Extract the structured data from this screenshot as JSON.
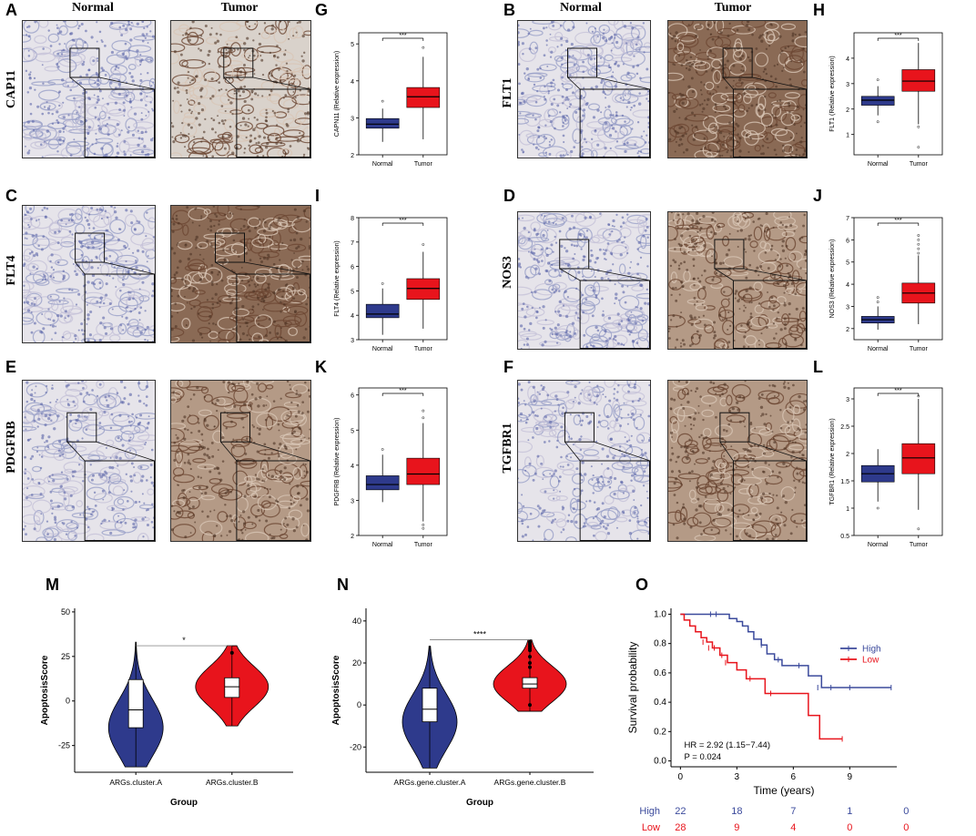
{
  "panel_letters": {
    "A": "A",
    "B": "B",
    "C": "C",
    "D": "D",
    "E": "E",
    "F": "F",
    "G": "G",
    "H": "H",
    "I": "I",
    "J": "J",
    "K": "K",
    "L": "L",
    "M": "M",
    "N": "N",
    "O": "O"
  },
  "ihc": {
    "col_normal": "Normal",
    "col_tumor": "Tumor",
    "genes": {
      "A": "CAP11",
      "B": "FLT1",
      "C": "FLT4",
      "D": "NOS3",
      "E": "PDGFRB",
      "F": "TGFBR1"
    }
  },
  "colors": {
    "normal_box": "#2e3a8c",
    "tumor_box": "#e8141c",
    "high": "#3b4a9c",
    "low": "#e8141c"
  },
  "chart_data": [
    {
      "panel": "G",
      "type": "box",
      "ylabel": "CAPN11 (Relative expression)",
      "categories": [
        "Normal",
        "Tumor"
      ],
      "significance": "***",
      "ylim": [
        2,
        5.3
      ],
      "yticks": [
        2,
        3,
        4,
        5
      ],
      "boxes": [
        {
          "q1": 2.72,
          "median": 2.83,
          "q3": 2.98,
          "whislo": 2.35,
          "whishi": 3.25,
          "outliers": [
            3.45
          ]
        },
        {
          "q1": 3.28,
          "median": 3.57,
          "q3": 3.82,
          "whislo": 2.42,
          "whishi": 4.65,
          "outliers": [
            4.9
          ]
        }
      ]
    },
    {
      "panel": "H",
      "type": "box",
      "ylabel": "FLT1 (Relative expression)",
      "categories": [
        "Normal",
        "Tumor"
      ],
      "significance": "***",
      "ylim": [
        0.2,
        5
      ],
      "yticks": [
        1,
        2,
        3,
        4
      ],
      "boxes": [
        {
          "q1": 2.15,
          "median": 2.35,
          "q3": 2.5,
          "whislo": 1.75,
          "whishi": 2.9,
          "outliers": [
            3.15,
            1.5
          ]
        },
        {
          "q1": 2.7,
          "median": 3.1,
          "q3": 3.55,
          "whislo": 1.4,
          "whishi": 4.6,
          "outliers": [
            1.3,
            0.5
          ]
        }
      ]
    },
    {
      "panel": "I",
      "type": "box",
      "ylabel": "FLT4 (Relative expression)",
      "categories": [
        "Normal",
        "Tumor"
      ],
      "significance": "***",
      "ylim": [
        3,
        8
      ],
      "yticks": [
        3,
        4,
        5,
        6,
        7,
        8
      ],
      "boxes": [
        {
          "q1": 3.9,
          "median": 4.05,
          "q3": 4.45,
          "whislo": 3.2,
          "whishi": 5.1,
          "outliers": [
            5.3
          ]
        },
        {
          "q1": 4.65,
          "median": 5.1,
          "q3": 5.5,
          "whislo": 3.45,
          "whishi": 6.6,
          "outliers": [
            6.9
          ]
        }
      ]
    },
    {
      "panel": "J",
      "type": "box",
      "ylabel": "NOS3 (Relative expression)",
      "categories": [
        "Normal",
        "Tumor"
      ],
      "significance": "***",
      "ylim": [
        1.5,
        7
      ],
      "yticks": [
        2,
        3,
        4,
        5,
        6,
        7
      ],
      "boxes": [
        {
          "q1": 2.25,
          "median": 2.4,
          "q3": 2.55,
          "whislo": 1.95,
          "whishi": 3.0,
          "outliers": [
            3.2,
            3.4
          ]
        },
        {
          "q1": 3.15,
          "median": 3.6,
          "q3": 4.05,
          "whislo": 2.2,
          "whishi": 5.3,
          "outliers": [
            5.4,
            5.6,
            5.8,
            6.0,
            6.2
          ]
        }
      ]
    },
    {
      "panel": "K",
      "type": "box",
      "ylabel": "PDGFRB (Relative expression)",
      "categories": [
        "Normal",
        "Tumor"
      ],
      "significance": "***",
      "ylim": [
        2,
        6.2
      ],
      "yticks": [
        2,
        3,
        4,
        5,
        6
      ],
      "boxes": [
        {
          "q1": 3.3,
          "median": 3.45,
          "q3": 3.7,
          "whislo": 2.95,
          "whishi": 4.3,
          "outliers": [
            4.45
          ]
        },
        {
          "q1": 3.45,
          "median": 3.75,
          "q3": 4.2,
          "whislo": 2.4,
          "whishi": 5.2,
          "outliers": [
            5.35,
            5.55,
            2.3,
            2.2
          ]
        }
      ]
    },
    {
      "panel": "L",
      "type": "box",
      "ylabel": "TGFBR1 (Relative expression)",
      "categories": [
        "Normal",
        "Tumor"
      ],
      "significance": "***",
      "ylim": [
        0.5,
        3.2
      ],
      "yticks": [
        0.5,
        1.0,
        1.5,
        2.0,
        2.5,
        3.0
      ],
      "boxes": [
        {
          "q1": 1.48,
          "median": 1.63,
          "q3": 1.78,
          "whislo": 1.12,
          "whishi": 2.08,
          "outliers": [
            1.0
          ]
        },
        {
          "q1": 1.63,
          "median": 1.92,
          "q3": 2.18,
          "whislo": 0.97,
          "whishi": 3.0,
          "outliers": [
            0.62,
            3.05
          ]
        }
      ]
    },
    {
      "panel": "M",
      "type": "violin",
      "ylabel": "ApoptosisScore",
      "xlabel": "Group",
      "categories": [
        "ARGs.cluster.A",
        "ARGs.cluster.B"
      ],
      "significance": "*",
      "ylim": [
        -40,
        52
      ],
      "yticks": [
        -25,
        0,
        25,
        50
      ],
      "groups": [
        {
          "q1": -15,
          "median": -5,
          "q3": 12,
          "whislo": -37,
          "whishi": 33,
          "outliers": []
        },
        {
          "q1": 2,
          "median": 8,
          "q3": 13,
          "whislo": -14,
          "whishi": 31,
          "outliers": [
            27
          ]
        }
      ]
    },
    {
      "panel": "N",
      "type": "violin",
      "ylabel": "ApoptosisScore",
      "xlabel": "Group",
      "categories": [
        "ARGs.gene.cluster.A",
        "ARGs.gene.cluster.B"
      ],
      "significance": "****",
      "ylim": [
        -32,
        46
      ],
      "yticks": [
        -20,
        0,
        20,
        40
      ],
      "groups": [
        {
          "q1": -8,
          "median": -2,
          "q3": 8,
          "whislo": -30,
          "whishi": 28,
          "outliers": []
        },
        {
          "q1": 8,
          "median": 10,
          "q3": 13,
          "whislo": -3,
          "whishi": 31,
          "outliers": [
            0,
            18,
            20,
            23,
            26,
            27,
            28,
            29,
            30
          ]
        }
      ]
    },
    {
      "panel": "O",
      "type": "line",
      "subtype": "kaplan-meier",
      "xlabel": "Time (years)",
      "ylabel": "Survival probability",
      "xlim": [
        -0.5,
        11.5
      ],
      "ylim": [
        -0.04,
        1.04
      ],
      "xticks": [
        0,
        3,
        6,
        9
      ],
      "yticks": [
        0.0,
        0.2,
        0.4,
        0.6,
        0.8,
        1.0
      ],
      "yticklabels": [
        "0.0",
        "0.2",
        "0.4",
        "0.6",
        "0.8",
        "1.0"
      ],
      "annotation_hr": "HR = 2.92 (1.15−7.44)",
      "annotation_p": "P = 0.024",
      "series": [
        {
          "name": "High",
          "color": "#3b4a9c",
          "x": [
            0,
            2.2,
            2.6,
            3.0,
            3.3,
            3.6,
            3.9,
            4.3,
            4.6,
            5.0,
            5.4,
            6.8,
            7.5,
            11.2
          ],
          "y": [
            1.0,
            1.0,
            0.97,
            0.95,
            0.92,
            0.88,
            0.83,
            0.79,
            0.73,
            0.69,
            0.65,
            0.58,
            0.5,
            0.5
          ],
          "censors": [
            [
              1.6,
              1.0
            ],
            [
              1.9,
              1.0
            ],
            [
              4.3,
              0.79
            ],
            [
              5.2,
              0.69
            ],
            [
              6.3,
              0.65
            ],
            [
              7.3,
              0.5
            ],
            [
              8.0,
              0.5
            ],
            [
              9.0,
              0.5
            ],
            [
              11.2,
              0.5
            ]
          ]
        },
        {
          "name": "Low",
          "color": "#e8141c",
          "x": [
            0,
            0.2,
            0.5,
            0.8,
            1.1,
            1.4,
            1.7,
            2.1,
            2.5,
            3.0,
            3.5,
            4.5,
            6.8,
            7.4,
            8.6
          ],
          "y": [
            1.0,
            0.96,
            0.92,
            0.88,
            0.84,
            0.81,
            0.77,
            0.72,
            0.67,
            0.62,
            0.56,
            0.46,
            0.31,
            0.15,
            0.15
          ],
          "censors": [
            [
              1.2,
              0.81
            ],
            [
              1.5,
              0.77
            ],
            [
              1.8,
              0.77
            ],
            [
              2.2,
              0.72
            ],
            [
              2.4,
              0.67
            ],
            [
              3.7,
              0.56
            ],
            [
              4.8,
              0.46
            ],
            [
              8.6,
              0.15
            ]
          ]
        }
      ],
      "risk_table": {
        "rows": [
          {
            "label": "High",
            "values": [
              "22",
              "18",
              "7",
              "1",
              "0"
            ]
          },
          {
            "label": "Low",
            "values": [
              "28",
              "9",
              "4",
              "0",
              "0"
            ]
          }
        ],
        "times": [
          0,
          3,
          6,
          9,
          12
        ]
      }
    }
  ]
}
